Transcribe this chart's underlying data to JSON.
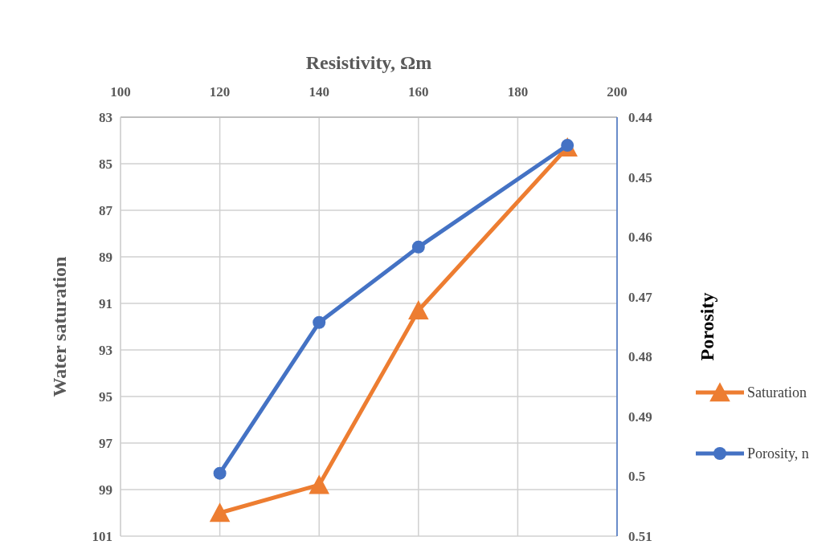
{
  "chart_data": {
    "type": "line",
    "xlabel": "Resistivity, Ωm",
    "ylabel": "Water saturation",
    "y2label": "Porosity",
    "x": [
      120,
      140,
      160,
      190
    ],
    "xlim": [
      100,
      200
    ],
    "xticks": [
      100,
      120,
      140,
      160,
      180,
      200
    ],
    "ylim": [
      101,
      83
    ],
    "yticks": [
      83,
      85,
      87,
      89,
      91,
      93,
      95,
      97,
      99,
      101
    ],
    "y2lim": [
      0.51,
      0.44
    ],
    "y2ticks": [
      0.44,
      0.45,
      0.46,
      0.47,
      0.48,
      0.49,
      {
        "value": 0.5,
        "label": "0.5"
      },
      0.51
    ],
    "grid": true,
    "legend": "right",
    "line_style": "solid",
    "series": [
      {
        "name": "Saturation",
        "color": "#ed7d31",
        "marker": "triangle",
        "values": [
          100.0,
          98.8,
          91.3,
          84.3
        ]
      },
      {
        "name": "Porosity, n",
        "color": "#4472c4",
        "marker": "circle",
        "axis": "y2",
        "values": [
          0.4995,
          0.4743,
          0.4617,
          0.4447
        ]
      }
    ]
  }
}
